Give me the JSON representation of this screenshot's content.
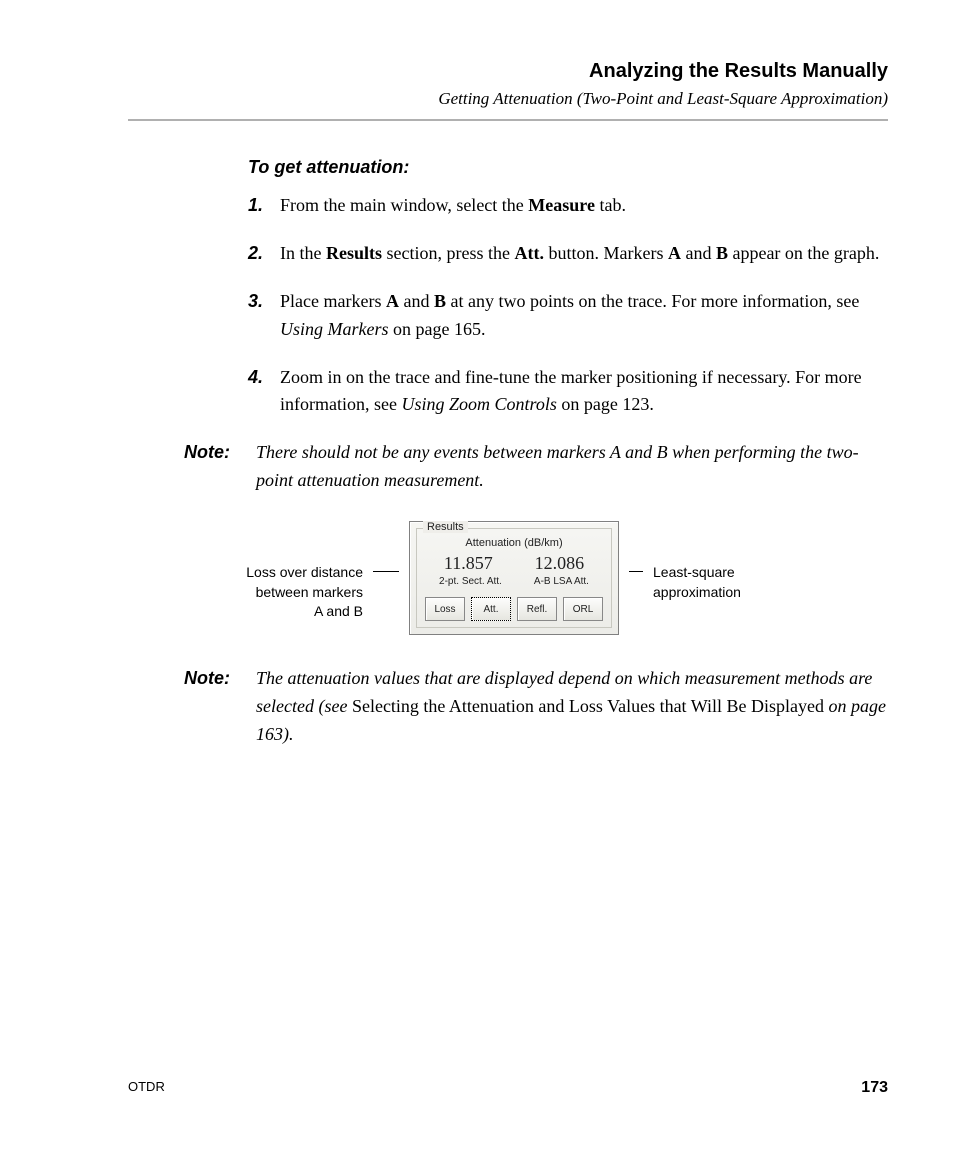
{
  "header": {
    "title": "Analyzing the Results Manually",
    "subtitle": "Getting Attenuation (Two-Point and Least-Square Approximation)"
  },
  "lead": "To get attenuation:",
  "steps": [
    {
      "n": "1.",
      "pre": " From the main window, select the ",
      "b1": "Measure",
      "post1": " tab."
    },
    {
      "n": "2.",
      "pre": "In the ",
      "b1": "Results",
      "mid1": " section, press the ",
      "b2": "Att.",
      "mid2": " button. Markers ",
      "b3": "A",
      "mid3": " and ",
      "b4": "B",
      "post": " appear on the graph."
    },
    {
      "n": "3.",
      "pre": "Place markers ",
      "b1": "A",
      "mid1": " and ",
      "b2": "B",
      "mid2": " at any two points on the trace. For more information, see ",
      "i1": "Using Markers",
      "post": " on page 165."
    },
    {
      "n": "4.",
      "pre": "Zoom in on the trace and fine-tune the marker positioning if necessary. For more information, see ",
      "i1": "Using Zoom Controls",
      "post": " on page 123."
    }
  ],
  "note1": {
    "label": "Note:",
    "text": "There should not be any events between markers A and B when performing the two-point attenuation measurement."
  },
  "figure": {
    "left_callout_l1": "Loss over distance",
    "left_callout_l2": "between markers",
    "left_callout_l3": "A and B",
    "right_callout_l1": "Least-square",
    "right_callout_l2": "approximation",
    "panel": {
      "group_title": "Results",
      "att_header": "Attenuation (dB/km)",
      "val_left": "11.857",
      "val_right": "12.086",
      "sub_left": "2-pt. Sect. Att.",
      "sub_right": "A-B LSA Att.",
      "buttons": [
        "Loss",
        "Att.",
        "Refl.",
        "ORL"
      ],
      "selected_index": 1,
      "colors": {
        "panel_border": "#808080",
        "panel_bg_top": "#f6f6f3",
        "panel_bg_bot": "#ecece8",
        "btn_border": "#888888"
      }
    }
  },
  "note2": {
    "label": "Note:",
    "pre": "The attenuation values that are displayed depend on which measurement methods are selected (see ",
    "roman": "Selecting the Attenuation and Loss Values that Will Be Displayed",
    "mid": " on page 163).",
    "post": ""
  },
  "footer": {
    "left": "OTDR",
    "page": "173"
  }
}
